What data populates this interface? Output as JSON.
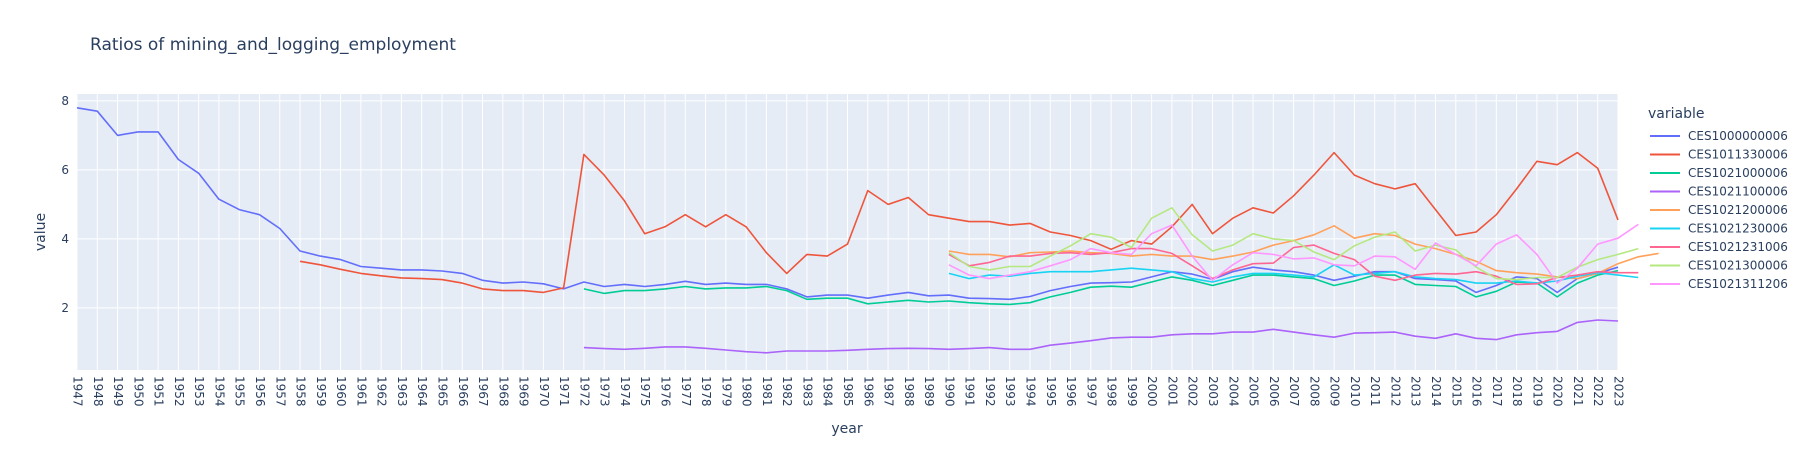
{
  "chart_data": {
    "type": "line",
    "title": "Ratios of mining_and_logging_employment",
    "xlabel": "year",
    "ylabel": "value",
    "xlim": [
      1947,
      2023
    ],
    "ylim": [
      0.2,
      8.2
    ],
    "yticks": [
      2,
      4,
      6,
      8
    ],
    "grid": true,
    "legend_title": "variable",
    "legend_position": "right",
    "plot_background": "#e5ecf6",
    "series": [
      {
        "name": "CES1000000006",
        "color": "#636efa",
        "start": 1947,
        "values": [
          7.8,
          7.7,
          7.0,
          7.1,
          7.1,
          6.3,
          5.9,
          5.15,
          4.85,
          4.7,
          4.3,
          3.65,
          3.5,
          3.4,
          3.2,
          3.15,
          3.1,
          3.1,
          3.07,
          3.0,
          2.8,
          2.72,
          2.75,
          2.7,
          2.55,
          2.75,
          2.62,
          2.68,
          2.62,
          2.68,
          2.77,
          2.68,
          2.72,
          2.68,
          2.68,
          2.55,
          2.32,
          2.37,
          2.37,
          2.28,
          2.37,
          2.45,
          2.35,
          2.37,
          2.28,
          2.27,
          2.25,
          2.33,
          2.5,
          2.62,
          2.72,
          2.73,
          2.75,
          2.9,
          3.05,
          2.98,
          2.83,
          3.05,
          3.18,
          3.1,
          3.05,
          2.95,
          2.8,
          2.92,
          3.05,
          3.05,
          2.85,
          2.82,
          2.78,
          2.45,
          2.65,
          2.9,
          2.85,
          2.45,
          2.85,
          3.0,
          3.18
        ]
      },
      {
        "name": "CES1011330006",
        "color": "#ef553b",
        "start": 1958,
        "values": [
          3.35,
          3.25,
          3.12,
          3.0,
          2.93,
          2.87,
          2.85,
          2.82,
          2.72,
          2.55,
          2.5,
          2.5,
          2.45,
          2.58,
          6.45,
          5.85,
          5.1,
          4.15,
          4.35,
          4.7,
          4.35,
          4.7,
          4.35,
          3.6,
          3.0,
          3.55,
          3.5,
          3.85,
          5.4,
          5.0,
          5.2,
          4.7,
          4.6,
          4.5,
          4.5,
          4.4,
          4.45,
          4.2,
          4.1,
          3.95,
          3.7,
          3.95,
          3.85,
          4.35,
          5.0,
          4.15,
          4.6,
          4.9,
          4.75,
          5.25,
          5.85,
          6.5,
          5.85,
          5.6,
          5.45,
          5.6,
          4.85,
          4.1,
          4.2,
          4.7,
          5.45,
          6.25,
          6.15,
          6.5,
          6.05,
          4.55
        ]
      },
      {
        "name": "CES1021000006",
        "color": "#00cc96",
        "start": 1972,
        "values": [
          2.55,
          2.42,
          2.5,
          2.5,
          2.55,
          2.62,
          2.55,
          2.58,
          2.58,
          2.62,
          2.5,
          2.25,
          2.28,
          2.28,
          2.12,
          2.17,
          2.22,
          2.17,
          2.2,
          2.15,
          2.12,
          2.1,
          2.15,
          2.32,
          2.45,
          2.6,
          2.63,
          2.6,
          2.75,
          2.9,
          2.8,
          2.65,
          2.8,
          2.95,
          2.95,
          2.9,
          2.85,
          2.65,
          2.78,
          2.95,
          2.95,
          2.68,
          2.65,
          2.62,
          2.32,
          2.48,
          2.75,
          2.72,
          2.32,
          2.72,
          2.95,
          3.08
        ]
      },
      {
        "name": "CES1021100006",
        "color": "#ab63fa",
        "start": 1972,
        "values": [
          0.85,
          0.82,
          0.8,
          0.83,
          0.87,
          0.87,
          0.83,
          0.78,
          0.73,
          0.7,
          0.75,
          0.75,
          0.75,
          0.77,
          0.8,
          0.82,
          0.83,
          0.82,
          0.8,
          0.82,
          0.85,
          0.8,
          0.8,
          0.92,
          0.98,
          1.05,
          1.13,
          1.15,
          1.15,
          1.22,
          1.25,
          1.25,
          1.3,
          1.3,
          1.38,
          1.3,
          1.22,
          1.15,
          1.27,
          1.28,
          1.3,
          1.18,
          1.12,
          1.25,
          1.12,
          1.08,
          1.22,
          1.28,
          1.32,
          1.58,
          1.65,
          1.62
        ]
      },
      {
        "name": "CES1021200006",
        "color": "#ffa15a",
        "start": 1990,
        "values": [
          3.65,
          3.55,
          3.55,
          3.48,
          3.6,
          3.62,
          3.65,
          3.6,
          3.58,
          3.5,
          3.55,
          3.5,
          3.5,
          3.4,
          3.5,
          3.62,
          3.82,
          3.95,
          4.12,
          4.38,
          4.02,
          4.15,
          4.1,
          3.85,
          3.72,
          3.55,
          3.35,
          3.08,
          3.02,
          2.98,
          2.9,
          2.85,
          3.0,
          3.28,
          3.48,
          3.58
        ]
      },
      {
        "name": "CES1021230006",
        "color": "#19d3f3",
        "start": 1990,
        "values": [
          3.0,
          2.85,
          2.95,
          2.92,
          3.0,
          3.05,
          3.05,
          3.05,
          3.1,
          3.15,
          3.1,
          3.05,
          2.85,
          2.75,
          2.9,
          3.0,
          3.0,
          2.95,
          2.9,
          3.25,
          2.95,
          3.0,
          3.05,
          2.9,
          2.85,
          2.82,
          2.72,
          2.72,
          2.78,
          2.72,
          2.78,
          2.92,
          3.02,
          2.95,
          2.88
        ]
      },
      {
        "name": "CES1021231006",
        "color": "#ff6692",
        "start": 1990,
        "values": [
          3.55,
          3.22,
          3.32,
          3.5,
          3.5,
          3.58,
          3.6,
          3.55,
          3.6,
          3.72,
          3.72,
          3.58,
          3.22,
          2.85,
          3.1,
          3.28,
          3.3,
          3.75,
          3.82,
          3.58,
          3.4,
          2.92,
          2.8,
          2.95,
          3.0,
          2.98,
          3.05,
          2.92,
          2.68,
          2.7,
          2.88,
          2.95,
          3.05,
          3.02,
          3.02
        ]
      },
      {
        "name": "CES1021300006",
        "color": "#b6e880",
        "start": 1990,
        "values": [
          3.6,
          3.2,
          3.1,
          3.2,
          3.2,
          3.5,
          3.8,
          4.15,
          4.05,
          3.75,
          4.6,
          4.9,
          4.12,
          3.65,
          3.82,
          4.15,
          4.0,
          3.95,
          3.62,
          3.4,
          3.8,
          4.05,
          4.2,
          3.65,
          3.82,
          3.68,
          3.18,
          2.85,
          2.82,
          2.88,
          2.88,
          3.18,
          3.4,
          3.55,
          3.72
        ]
      },
      {
        "name": "CES1021311206",
        "color": "#ff97ff",
        "start": 1990,
        "values": [
          3.25,
          2.95,
          2.85,
          2.95,
          3.05,
          3.22,
          3.4,
          3.72,
          3.6,
          3.55,
          4.15,
          4.4,
          3.5,
          2.8,
          3.25,
          3.6,
          3.55,
          3.42,
          3.45,
          3.25,
          3.22,
          3.5,
          3.48,
          3.12,
          3.88,
          3.55,
          3.22,
          3.85,
          4.12,
          3.55,
          2.72,
          3.15,
          3.85,
          4.02,
          4.42
        ]
      }
    ]
  }
}
